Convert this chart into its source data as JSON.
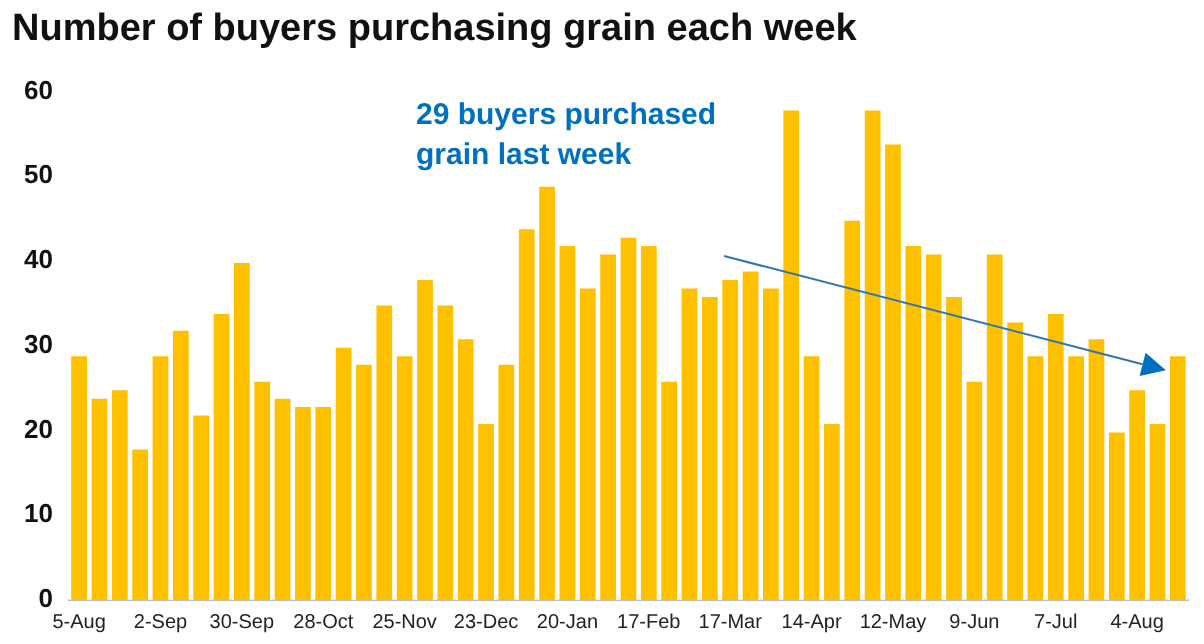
{
  "chart_data": {
    "type": "bar",
    "title": "Number of buyers purchasing grain each week",
    "categories": [
      "5-Aug",
      null,
      null,
      null,
      "2-Sep",
      null,
      null,
      null,
      "30-Sep",
      null,
      null,
      null,
      "28-Oct",
      null,
      null,
      null,
      "25-Nov",
      null,
      null,
      null,
      "23-Dec",
      null,
      null,
      null,
      "20-Jan",
      null,
      null,
      null,
      "17-Feb",
      null,
      null,
      null,
      "17-Mar",
      null,
      null,
      null,
      "14-Apr",
      null,
      null,
      null,
      "12-May",
      null,
      null,
      null,
      "9-Jun",
      null,
      null,
      null,
      "7-Jul",
      null,
      null,
      null,
      "4-Aug",
      null,
      null
    ],
    "values": [
      29,
      24,
      25,
      18,
      29,
      32,
      22,
      34,
      40,
      26,
      24,
      23,
      23,
      30,
      28,
      35,
      29,
      38,
      35,
      31,
      21,
      28,
      44,
      49,
      42,
      37,
      41,
      43,
      42,
      26,
      37,
      36,
      38,
      39,
      37,
      58,
      29,
      21,
      45,
      58,
      54,
      42,
      41,
      36,
      26,
      41,
      33,
      29,
      34,
      29,
      31,
      20,
      25,
      21,
      29
    ],
    "color": "#ffc000",
    "ylim": [
      0,
      60
    ],
    "yticks": [
      0,
      10,
      20,
      30,
      40,
      50,
      60
    ],
    "annotations": [
      "29 buyers purchased grain last week"
    ]
  }
}
